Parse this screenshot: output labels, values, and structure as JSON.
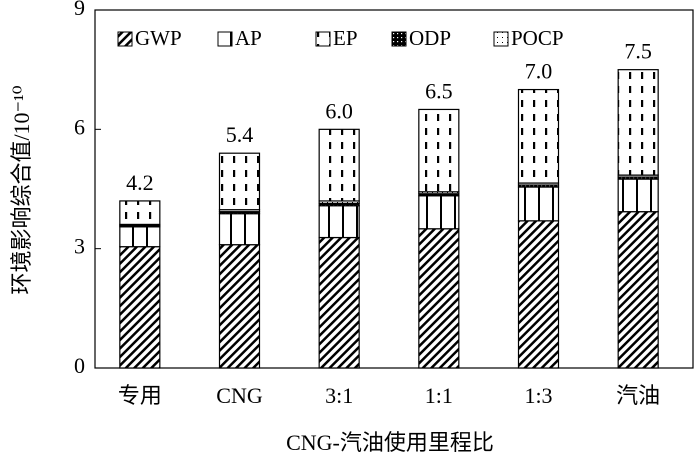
{
  "chart_data": {
    "type": "bar",
    "stacked": true,
    "x_label": "CNG-汽油使用里程比",
    "y_label": "环境影响综合值/10⁻¹⁰",
    "categories": [
      "专用",
      "CNG",
      "3:1",
      "1:1",
      "1:3",
      "汽油"
    ],
    "series": [
      {
        "name": "GWP",
        "color": "#000000",
        "values": [
          3.05,
          3.1,
          3.28,
          3.5,
          3.7,
          3.93
        ]
      },
      {
        "name": "AP",
        "color": "#000000",
        "values": [
          0.5,
          0.78,
          0.8,
          0.83,
          0.85,
          0.82
        ]
      },
      {
        "name": "EP",
        "color": "#000000",
        "values": [
          0.59,
          1.42,
          1.8,
          2.07,
          2.35,
          2.65
        ]
      },
      {
        "name": "ODP",
        "color": "#000000",
        "values": [
          0.03,
          0.05,
          0.06,
          0.05,
          0.05,
          0.05
        ]
      },
      {
        "name": "POCP",
        "color": "#000000",
        "values": [
          0.03,
          0.05,
          0.06,
          0.05,
          0.05,
          0.05
        ]
      }
    ],
    "totals": [
      4.2,
      5.4,
      6,
      6.5,
      7,
      7.5
    ],
    "total_labels": [
      "4.2",
      "5.4",
      "6.0",
      "6.5",
      "7.0",
      "7.5"
    ],
    "ylim": [
      0,
      9
    ],
    "yticks": [
      0,
      3,
      6,
      9
    ],
    "grid": false,
    "legend": "top"
  }
}
